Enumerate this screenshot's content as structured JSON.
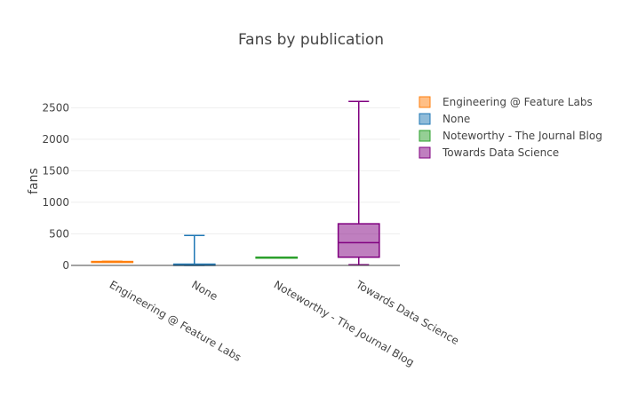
{
  "chart_data": {
    "type": "box",
    "title": "Fans by publication",
    "xlabel": "",
    "ylabel": "fans",
    "ylim": [
      0,
      2800
    ],
    "yticks": [
      0,
      500,
      1000,
      1500,
      2000,
      2500
    ],
    "grid": true,
    "legend_position": "right",
    "series": [
      {
        "name": "Engineering @ Feature Labs",
        "category": "Engineering @ Feature Labs",
        "color": "#ff7f0e",
        "min": 55,
        "q1": 55,
        "median": 60,
        "q3": 62,
        "max": 65
      },
      {
        "name": "None",
        "category": "None",
        "color": "#1f77b4",
        "min": 0,
        "q1": 0,
        "median": 5,
        "q3": 20,
        "max": 475
      },
      {
        "name": "Noteworthy - The Journal Blog",
        "category": "Noteworthy - The Journal Blog",
        "color": "#2ca02c",
        "min": 130,
        "q1": 130,
        "median": 130,
        "q3": 130,
        "max": 130
      },
      {
        "name": "Towards Data Science",
        "category": "Towards Data Science",
        "color": "#800080",
        "min": 10,
        "q1": 130,
        "median": 360,
        "q3": 660,
        "max": 2600
      }
    ]
  }
}
